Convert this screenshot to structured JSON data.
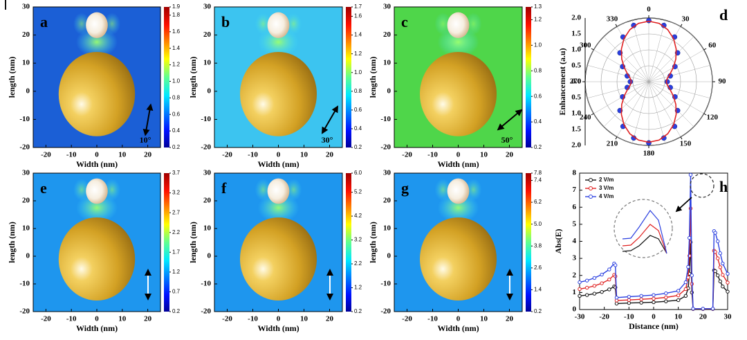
{
  "chart_data": [
    {
      "type": "heatmap",
      "panel_label": "a",
      "xlabel": "Width (nm)",
      "ylabel": "length (nm)",
      "xlim": [
        -25,
        25
      ],
      "ylim": [
        -20,
        30
      ],
      "xticks": [
        -20,
        -10,
        0,
        10,
        20
      ],
      "yticks": [
        -20,
        -10,
        0,
        10,
        20,
        30
      ],
      "colorbar_lim": [
        0.2,
        1.9
      ],
      "colorbar_ticks": [
        0.2,
        0.4,
        0.6,
        0.8,
        {
          "value": 1,
          "label": "1.0"
        },
        1.2,
        1.4,
        1.6,
        1.8,
        1.9
      ],
      "field_color": "#1b5fd6",
      "annotation": {
        "value": 10,
        "label": "10°"
      }
    },
    {
      "type": "heatmap",
      "panel_label": "b",
      "xlabel": "Width (nm)",
      "ylabel": "length (nm)",
      "xlim": [
        -25,
        25
      ],
      "ylim": [
        -20,
        30
      ],
      "xticks": [
        -20,
        -10,
        0,
        10,
        20
      ],
      "yticks": [
        -20,
        -10,
        0,
        10,
        20,
        30
      ],
      "colorbar_lim": [
        0.2,
        1.7
      ],
      "colorbar_ticks": [
        0.2,
        0.4,
        0.6,
        0.8,
        {
          "value": 1,
          "label": "1.0"
        },
        1.2,
        1.4,
        1.6,
        1.7
      ],
      "field_color": "#3cc4f0",
      "annotation": {
        "value": 30,
        "label": "30°"
      }
    },
    {
      "type": "heatmap",
      "panel_label": "c",
      "xlabel": "Width (nm)",
      "ylabel": "length (nm)",
      "xlim": [
        -25,
        25
      ],
      "ylim": [
        -20,
        30
      ],
      "xticks": [
        -20,
        -10,
        0,
        10,
        20
      ],
      "yticks": [
        -20,
        -10,
        0,
        10,
        20,
        30
      ],
      "colorbar_lim": [
        0.2,
        1.3
      ],
      "colorbar_ticks": [
        0.2,
        0.4,
        0.6,
        0.8,
        {
          "value": 1,
          "label": "1.0"
        },
        1.2,
        1.3
      ],
      "field_color": "#4fd64a",
      "annotation": {
        "value": 50,
        "label": "50°"
      }
    },
    {
      "type": "polar",
      "panel_label": "d",
      "ylabel": "Enhancement (a.u)",
      "rlim": [
        0,
        2
      ],
      "rticks": [
        {
          "value": 0,
          "label": "0.0"
        },
        0.5,
        {
          "value": 1,
          "label": "1.0"
        },
        1.5,
        {
          "value": 2,
          "label": "2.0"
        }
      ],
      "angle_ticks": [
        0,
        30,
        60,
        90,
        120,
        150,
        180,
        210,
        240,
        270,
        300,
        330
      ],
      "series": [
        {
          "style": "markers",
          "color": "#2a3fe0",
          "theta": [
            0,
            15,
            30,
            45,
            60,
            75,
            90,
            105,
            120,
            135,
            150,
            165,
            180,
            195,
            210,
            225,
            240,
            255,
            270,
            285,
            300,
            315,
            330,
            345
          ],
          "values": [
            1.92,
            1.83,
            1.62,
            1.28,
            0.95,
            0.7,
            0.58,
            0.7,
            0.95,
            1.28,
            1.62,
            1.83,
            1.92,
            1.83,
            1.62,
            1.28,
            0.95,
            0.7,
            0.58,
            0.7,
            0.95,
            1.28,
            1.62,
            1.83
          ]
        },
        {
          "style": "line",
          "color": "#e02020",
          "theta": [
            0,
            10,
            20,
            30,
            40,
            50,
            60,
            70,
            80,
            90,
            100,
            110,
            120,
            130,
            140,
            150,
            160,
            170,
            180,
            190,
            200,
            210,
            220,
            230,
            240,
            250,
            260,
            270,
            280,
            290,
            300,
            310,
            320,
            330,
            340,
            350
          ],
          "values": [
            1.9,
            1.86,
            1.74,
            1.56,
            1.34,
            1.11,
            0.89,
            0.71,
            0.59,
            0.55,
            0.59,
            0.71,
            0.89,
            1.11,
            1.34,
            1.56,
            1.74,
            1.86,
            1.9,
            1.86,
            1.74,
            1.56,
            1.34,
            1.11,
            0.89,
            0.71,
            0.59,
            0.55,
            0.59,
            0.71,
            0.89,
            1.11,
            1.34,
            1.56,
            1.74,
            1.86
          ]
        }
      ]
    },
    {
      "type": "heatmap",
      "panel_label": "e",
      "xlabel": "Width (nm)",
      "ylabel": "length (nm)",
      "xlim": [
        -25,
        25
      ],
      "ylim": [
        -20,
        30
      ],
      "xticks": [
        -20,
        -10,
        0,
        10,
        20
      ],
      "yticks": [
        -20,
        -10,
        0,
        10,
        20,
        30
      ],
      "colorbar_lim": [
        0.2,
        3.7
      ],
      "colorbar_ticks": [
        0.2,
        0.7,
        1.2,
        1.7,
        2.2,
        2.7,
        3.2,
        3.7
      ],
      "field_color": "#1e96ee"
    },
    {
      "type": "heatmap",
      "panel_label": "f",
      "xlabel": "Width (nm)",
      "ylabel": "length (nm)",
      "xlim": [
        -25,
        25
      ],
      "ylim": [
        -20,
        30
      ],
      "xticks": [
        -20,
        -10,
        0,
        10,
        20
      ],
      "yticks": [
        -20,
        -10,
        0,
        10,
        20,
        30
      ],
      "colorbar_lim": [
        0.2,
        6
      ],
      "colorbar_ticks": [
        0.2,
        1.2,
        2.2,
        3.2,
        4.2,
        5.2,
        {
          "value": 6,
          "label": "6.0"
        }
      ],
      "field_color": "#1e96ee"
    },
    {
      "type": "heatmap",
      "panel_label": "g",
      "xlabel": "Width (nm)",
      "ylabel": "length (nm)",
      "xlim": [
        -25,
        25
      ],
      "ylim": [
        -20,
        30
      ],
      "xticks": [
        -20,
        -10,
        0,
        10,
        20
      ],
      "yticks": [
        -20,
        -10,
        0,
        10,
        20,
        30
      ],
      "colorbar_lim": [
        0.2,
        7.8
      ],
      "colorbar_ticks": [
        0.2,
        1.4,
        2.6,
        3.8,
        {
          "value": 5,
          "label": "5.0"
        },
        6.2,
        7.4,
        7.8
      ],
      "field_color": "#1e96ee"
    },
    {
      "type": "line",
      "panel_label": "h",
      "xlabel": "Distance (nm)",
      "ylabel": "Abs(E)",
      "xlim": [
        -30,
        30
      ],
      "ylim": [
        0,
        8
      ],
      "xticks": [
        -30,
        -20,
        -10,
        0,
        10,
        20,
        30
      ],
      "yticks": [
        0,
        1,
        2,
        3,
        4,
        5,
        6,
        7,
        8
      ],
      "legend": "upper left",
      "x": [
        -30,
        -27,
        -24,
        -21,
        -18,
        -16,
        -15.5,
        -15,
        -10,
        -5,
        0,
        5,
        10,
        13,
        14,
        14.5,
        15,
        15.5,
        16,
        20,
        24,
        24.5,
        25,
        26,
        27,
        28,
        30
      ],
      "series": [
        {
          "name": "2 V/m",
          "color": "#111111",
          "values": [
            0.8,
            0.85,
            0.93,
            1.03,
            1.18,
            1.35,
            1.3,
            0.35,
            0.38,
            0.4,
            0.43,
            0.48,
            0.55,
            0.8,
            1.25,
            2.1,
            3.95,
            1.0,
            0.03,
            0.03,
            0.03,
            2.3,
            2.25,
            2.0,
            1.65,
            1.35,
            1.05
          ]
        },
        {
          "name": "3 V/m",
          "color": "#e02020",
          "values": [
            1.2,
            1.28,
            1.39,
            1.54,
            1.76,
            2.03,
            1.95,
            0.53,
            0.56,
            0.6,
            0.64,
            0.71,
            0.83,
            1.2,
            1.88,
            3.15,
            5.93,
            1.5,
            0.04,
            0.04,
            0.04,
            3.45,
            3.38,
            3.0,
            2.48,
            2.03,
            1.58
          ]
        },
        {
          "name": "4 V/m",
          "color": "#2a3fe0",
          "values": [
            1.6,
            1.7,
            1.85,
            2.05,
            2.35,
            2.7,
            2.6,
            0.7,
            0.75,
            0.8,
            0.85,
            0.95,
            1.1,
            1.6,
            2.5,
            4.2,
            7.9,
            2.0,
            0.05,
            0.05,
            0.05,
            4.6,
            4.5,
            4.0,
            3.3,
            2.7,
            2.1
          ]
        }
      ]
    }
  ]
}
